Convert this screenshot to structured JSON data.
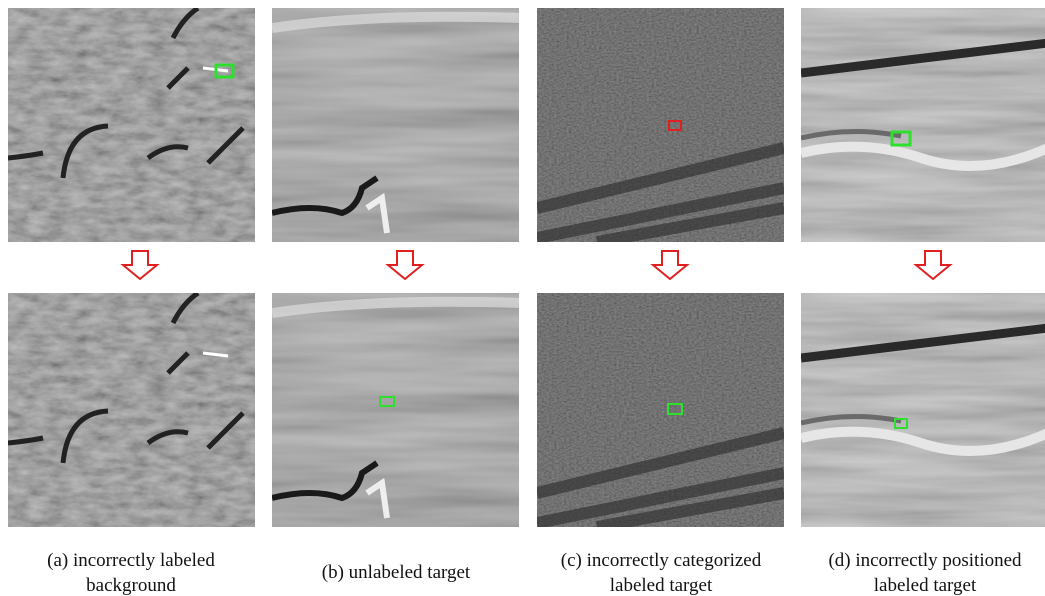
{
  "captions": [
    [
      "(a) incorrectly labeled",
      "background"
    ],
    [
      "(b) unlabeled target"
    ],
    [
      "(c) incorrectly categorized",
      "labeled target"
    ],
    [
      "(d) incorrectly positioned",
      "labeled target"
    ]
  ]
}
